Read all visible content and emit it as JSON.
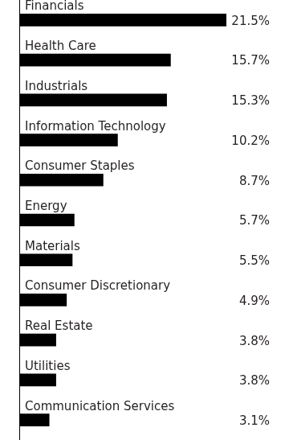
{
  "chart_data": {
    "type": "bar",
    "orientation": "horizontal",
    "categories": [
      "Financials",
      "Health Care",
      "Industrials",
      "Information Technology",
      "Consumer Staples",
      "Energy",
      "Materials",
      "Consumer Discretionary",
      "Real Estate",
      "Utilities",
      "Communication Services"
    ],
    "values": [
      21.5,
      15.7,
      15.3,
      10.2,
      8.7,
      5.7,
      5.5,
      4.9,
      3.8,
      3.8,
      3.1
    ],
    "value_labels": [
      "21.5%",
      "15.7%",
      "15.3%",
      "10.2%",
      "8.7%",
      "5.7%",
      "5.5%",
      "4.9%",
      "3.8%",
      "3.8%",
      "3.1%"
    ],
    "color": "#000000",
    "xlim": [
      0,
      21.5
    ],
    "data_labels": true,
    "tick_labels": false,
    "grid": false
  }
}
